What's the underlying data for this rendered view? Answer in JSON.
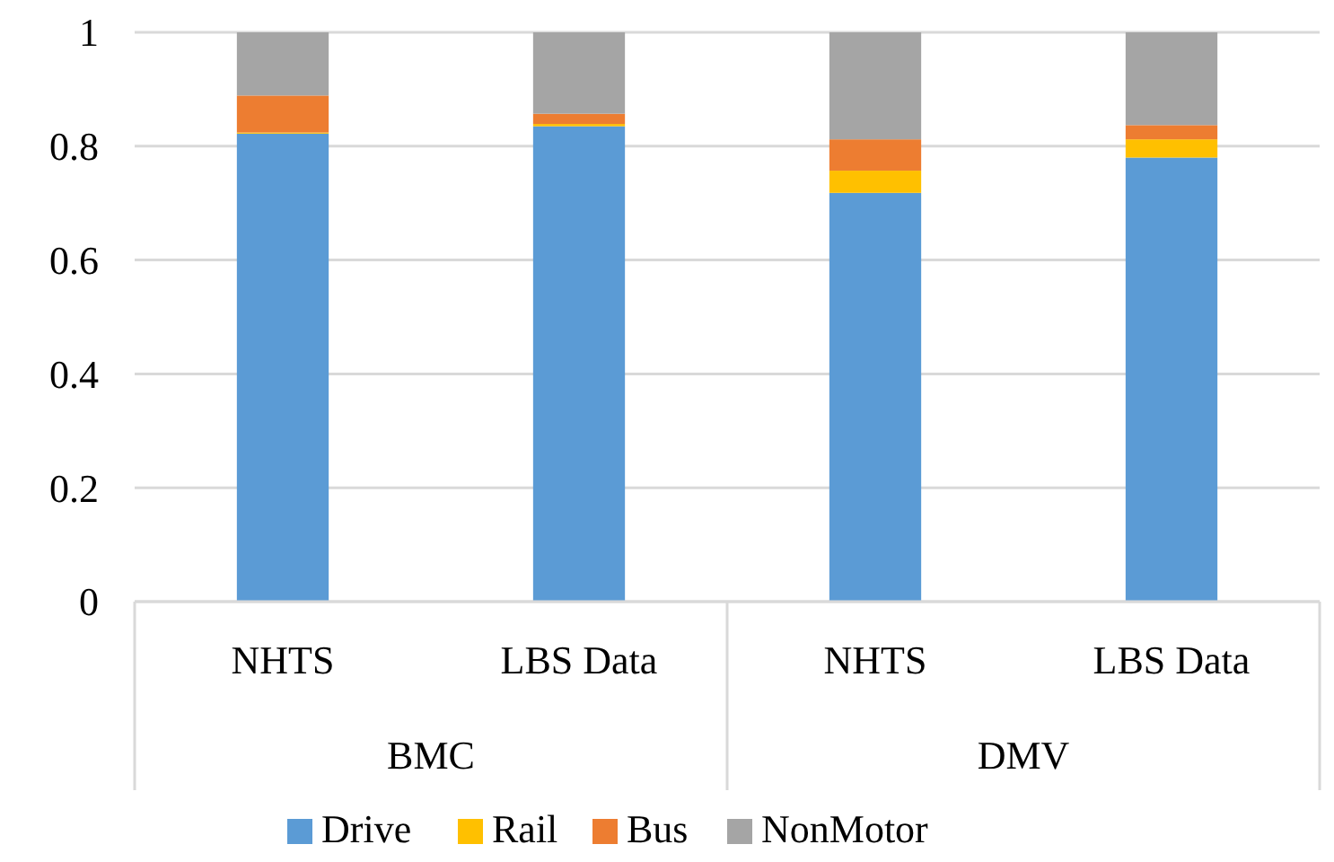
{
  "chart_data": {
    "type": "bar",
    "stacked": true,
    "categories": [
      "NHTS",
      "LBS Data",
      "NHTS",
      "LBS Data"
    ],
    "series": [
      {
        "name": "Drive",
        "color": "#5b9bd5",
        "values": [
          0.822,
          0.835,
          0.718,
          0.78
        ]
      },
      {
        "name": "Rail",
        "color": "#ffc000",
        "values": [
          0.002,
          0.004,
          0.039,
          0.032
        ]
      },
      {
        "name": "Bus",
        "color": "#ed7d31",
        "values": [
          0.065,
          0.018,
          0.055,
          0.025
        ]
      },
      {
        "name": "NonMotor",
        "color": "#a5a5a5",
        "values": [
          0.111,
          0.143,
          0.188,
          0.163
        ]
      }
    ],
    "ylim": [
      0,
      1
    ],
    "yticks": [
      0,
      0.2,
      0.4,
      0.6,
      0.8,
      1
    ],
    "grid": "y",
    "legend": "bottom",
    "annotations": [
      "BMC",
      "DMV"
    ]
  }
}
